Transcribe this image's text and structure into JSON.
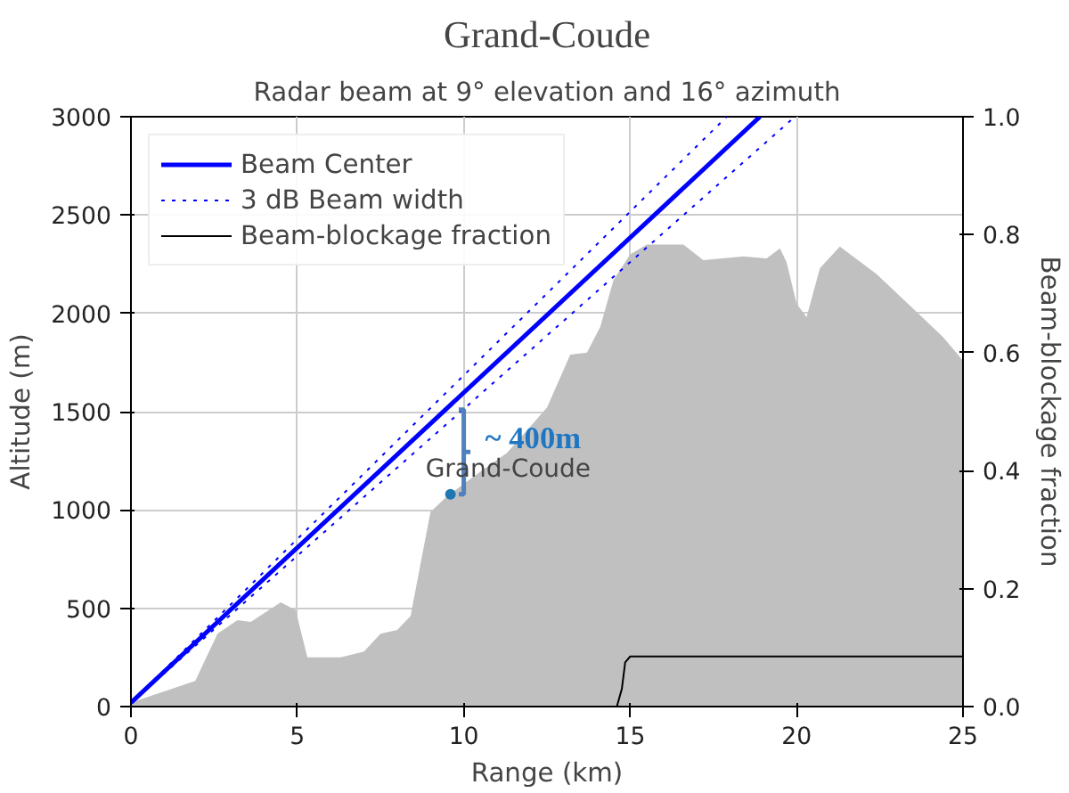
{
  "chart_data": {
    "type": "line",
    "title": "Grand-Coude",
    "subtitle": "Radar beam at 9° elevation and 16° azimuth",
    "xlabel": "Range (km)",
    "ylabel": "Altitude (m)",
    "y2label": "Beam-blockage fraction",
    "xlim": [
      0,
      25
    ],
    "xticks": [
      0,
      5,
      10,
      15,
      20,
      25
    ],
    "ylim": [
      0,
      3000
    ],
    "yticks": [
      0,
      500,
      1000,
      1500,
      2000,
      2500,
      3000
    ],
    "y2lim": [
      0,
      1.0
    ],
    "y2ticks": [
      {
        "value": 0,
        "label": "0.0"
      },
      0.2,
      0.4,
      0.6,
      0.8,
      {
        "value": 1.0,
        "label": "1.0"
      }
    ],
    "grid": true,
    "legend": "top left",
    "series": [
      {
        "type": "area",
        "color": "#c0c0c0",
        "x": [
          0,
          1.93,
          2.6,
          3.2,
          3.6,
          4.5,
          4.95,
          5.3,
          6.3,
          7.0,
          7.5,
          8.0,
          8.4,
          9.0,
          9.5,
          10.3,
          11.3,
          12.5,
          13.2,
          13.7,
          14.1,
          14.5,
          15.0,
          15.5,
          16.6,
          17.2,
          18.4,
          19.1,
          19.5,
          19.7,
          20.0,
          20.3,
          20.7,
          21.3,
          22.4,
          23.4,
          24.4,
          25
        ],
        "values": [
          20,
          130,
          370,
          440,
          430,
          530,
          490,
          250,
          250,
          280,
          370,
          390,
          460,
          990,
          1070,
          1170,
          1290,
          1520,
          1790,
          1800,
          1930,
          2170,
          2300,
          2350,
          2350,
          2270,
          2290,
          2280,
          2330,
          2260,
          2050,
          1980,
          2230,
          2340,
          2200,
          2040,
          1880,
          1760
        ]
      },
      {
        "name": "Beam Center",
        "color": "#0000ff",
        "line_style": "solid",
        "x": [
          0,
          18.9
        ],
        "values": [
          20,
          3000
        ]
      },
      {
        "name": "3 dB Beam width",
        "color": "#0000ff",
        "line_style": "dotted",
        "x": [
          0,
          17.9
        ],
        "values": [
          20,
          3000
        ]
      },
      {
        "color": "#0000ff",
        "line_style": "dotted",
        "x": [
          0,
          19.95
        ],
        "values": [
          20,
          3000
        ]
      },
      {
        "name": "Beam-blockage fraction",
        "color": "#000000",
        "line_style": "solid",
        "axis": "y2",
        "x": [
          0,
          14.6,
          14.75,
          14.85,
          15.0,
          25
        ],
        "values": [
          0,
          0,
          0.03,
          0.075,
          0.085,
          0.085
        ]
      }
    ],
    "annotations": [
      {
        "text": "Grand-Coude",
        "x": 9.6,
        "y": 1080
      },
      {
        "text": "~ 400m",
        "x": 10,
        "y": 1510
      }
    ]
  }
}
